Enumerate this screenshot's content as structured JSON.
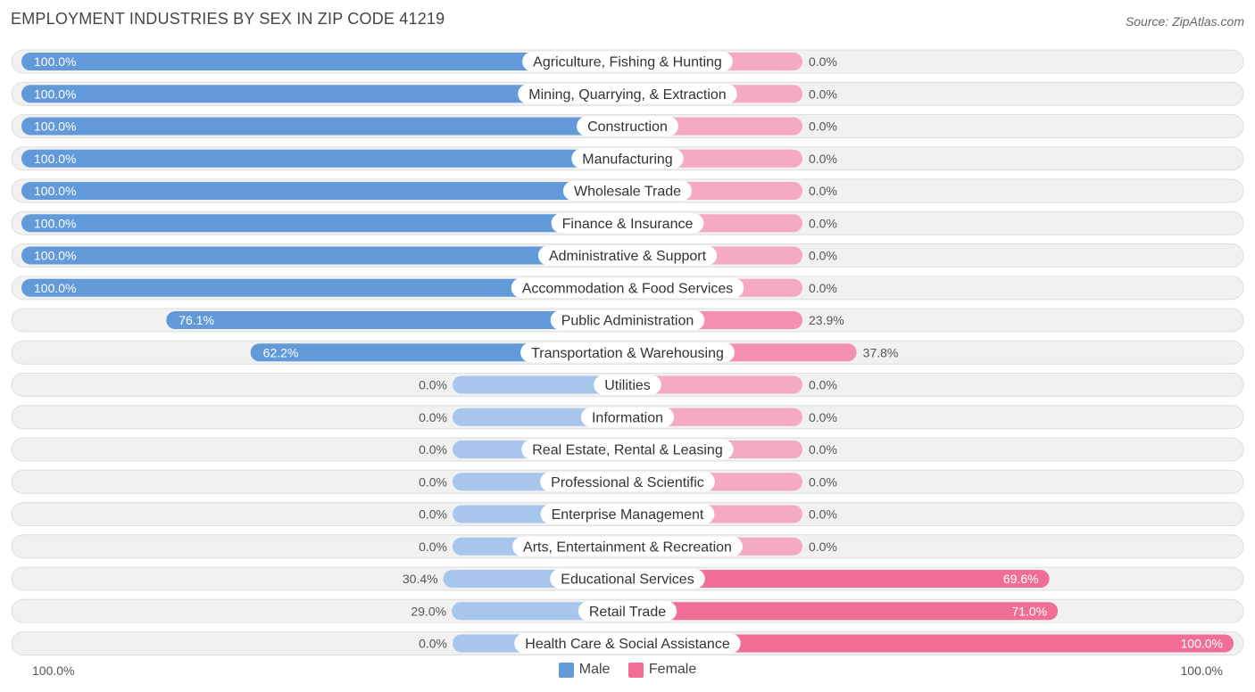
{
  "header": {
    "title": "EMPLOYMENT INDUSTRIES BY SEX IN ZIP CODE 41219",
    "source": "Source: ZipAtlas.com"
  },
  "legend": {
    "male": "Male",
    "female": "Female"
  },
  "axis": {
    "left": "100.0%",
    "right": "100.0%"
  },
  "colors": {
    "male_strong": "#6199d9",
    "male_light": "#a8c6ec",
    "female_strong": "#f06e96",
    "female_light": "#f6a9c2",
    "row_bg": "#f1f1f1",
    "row_border": "#dedede"
  },
  "chart_data": {
    "type": "bar",
    "orientation": "horizontal-diverging",
    "title": "EMPLOYMENT INDUSTRIES BY SEX IN ZIP CODE 41219",
    "xlim": [
      -100,
      100
    ],
    "categories": [
      "Agriculture, Fishing & Hunting",
      "Mining, Quarrying, & Extraction",
      "Construction",
      "Manufacturing",
      "Wholesale Trade",
      "Finance & Insurance",
      "Administrative & Support",
      "Accommodation & Food Services",
      "Public Administration",
      "Transportation & Warehousing",
      "Utilities",
      "Information",
      "Real Estate, Rental & Leasing",
      "Professional & Scientific",
      "Enterprise Management",
      "Arts, Entertainment & Recreation",
      "Educational Services",
      "Retail Trade",
      "Health Care & Social Assistance"
    ],
    "series": [
      {
        "name": "Male",
        "values": [
          100.0,
          100.0,
          100.0,
          100.0,
          100.0,
          100.0,
          100.0,
          100.0,
          76.1,
          62.2,
          0.0,
          0.0,
          0.0,
          0.0,
          0.0,
          0.0,
          30.4,
          29.0,
          0.0
        ]
      },
      {
        "name": "Female",
        "values": [
          0.0,
          0.0,
          0.0,
          0.0,
          0.0,
          0.0,
          0.0,
          0.0,
          23.9,
          37.8,
          0.0,
          0.0,
          0.0,
          0.0,
          0.0,
          0.0,
          69.6,
          71.0,
          100.0
        ]
      }
    ],
    "legend_position": "bottom-center"
  }
}
